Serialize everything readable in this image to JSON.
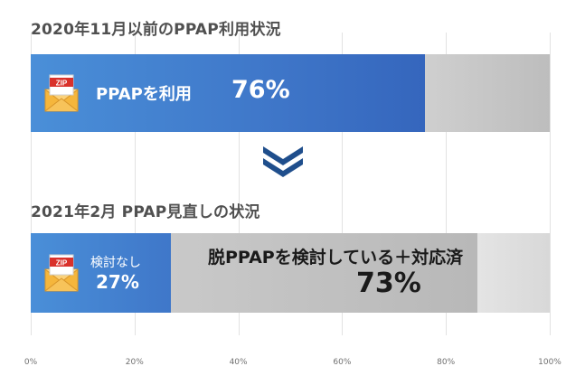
{
  "chart_data": [
    {
      "type": "bar",
      "orientation": "horizontal",
      "stacked": true,
      "title": "2020年11月以前のPPAP利用状況",
      "segments": [
        {
          "label": "PPAPを利用",
          "value": 76,
          "value_text": "76%"
        },
        {
          "label": "",
          "value": 24,
          "value_text": ""
        }
      ]
    },
    {
      "type": "bar",
      "orientation": "horizontal",
      "stacked": true,
      "title": "2021年2月 PPAP見直しの状況",
      "segments": [
        {
          "label": "検討なし",
          "value": 27,
          "value_text": "27%"
        },
        {
          "label": "脱PPAPを検討している＋対応済",
          "value": 73,
          "value_text": "73%"
        }
      ]
    }
  ],
  "axis": {
    "ticks": [
      "0%",
      "20%",
      "40%",
      "60%",
      "80%",
      "100%"
    ],
    "values": [
      0,
      20,
      40,
      60,
      80,
      100
    ],
    "xlim": [
      0,
      100
    ],
    "grid": true
  },
  "icons": {
    "envelope": "zip-envelope-icon",
    "envelope_label": "ZIP",
    "separator": "double-chevron-down-icon"
  },
  "colors": {
    "accent_blue": "#3f77c9",
    "gray": "#c2c2c2",
    "light_gray": "#e0e0e0",
    "chevron": "#1f4e8c",
    "envelope": "#f5b63c",
    "zip_tag": "#d9312b"
  }
}
